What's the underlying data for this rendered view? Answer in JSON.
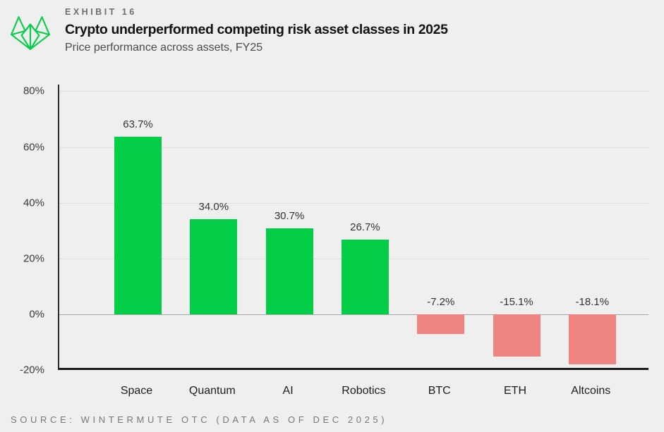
{
  "header": {
    "exhibit_label": "EXHIBIT 16",
    "title": "Crypto underperformed competing risk asset classes in 2025",
    "subtitle": "Price performance across assets, FY25"
  },
  "chart_data": {
    "type": "bar",
    "categories": [
      "Space",
      "Quantum",
      "AI",
      "Robotics",
      "BTC",
      "ETH",
      "Altcoins"
    ],
    "values": [
      63.7,
      34.0,
      30.7,
      26.7,
      -7.2,
      -15.1,
      -18.1
    ],
    "value_labels": [
      "63.7%",
      "34.0%",
      "30.7%",
      "26.7%",
      "-7.2%",
      "-15.1%",
      "-18.1%"
    ],
    "title": "Crypto underperformed competing risk asset classes in 2025",
    "subtitle": "Price performance across assets, FY25",
    "xlabel": "",
    "ylabel": "",
    "ylim": [
      -20,
      80
    ],
    "yticks": [
      80,
      60,
      40,
      20,
      0,
      -20
    ],
    "ytick_labels": [
      "80%",
      "60%",
      "40%",
      "20%",
      "0%",
      "-20%"
    ],
    "grid": true,
    "legend_position": "none",
    "positive_color": "#04CD48",
    "negative_color": "#F08481"
  },
  "colors": {
    "background": "#EFEFEF",
    "accent_green": "#04CD48",
    "accent_salmon": "#F08481",
    "gridline": "#DEDEDE",
    "zero_line": "#A2A6A4",
    "axis": "#1B1B1B",
    "text_primary": "#131313",
    "text_secondary": "#4B4B4B",
    "text_muted": "#6B706E"
  },
  "footer": {
    "source": "SOURCE: WINTERMUTE OTC (DATA AS OF DEC 2025)"
  }
}
